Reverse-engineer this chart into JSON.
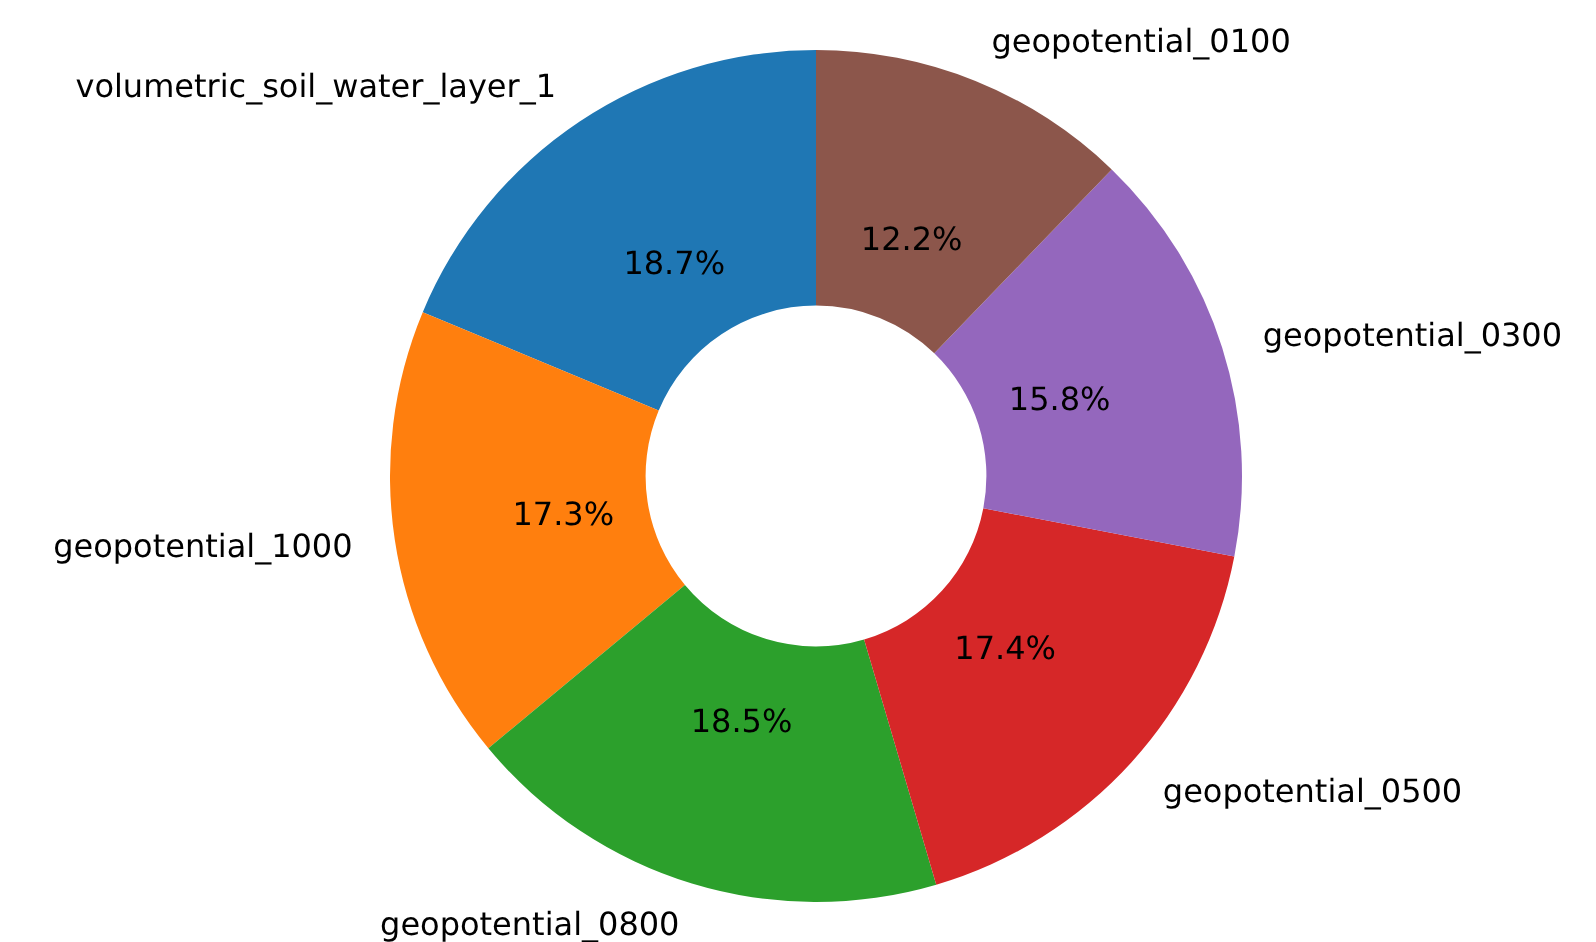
{
  "chart_data": {
    "type": "donut",
    "categories": [
      "volumetric_soil_water_layer_1",
      "geopotential_1000",
      "geopotential_0800",
      "geopotential_0500",
      "geopotential_0300",
      "geopotential_0100"
    ],
    "values": [
      18.7,
      17.3,
      18.5,
      17.4,
      15.8,
      12.2
    ],
    "colors": [
      "#1f77b4",
      "#ff7f0e",
      "#2ca02c",
      "#d62728",
      "#9467bd",
      "#8c564b"
    ],
    "value_labels": [
      "18.7%",
      "17.3%",
      "18.5%",
      "17.4%",
      "15.8%",
      "12.2%"
    ]
  }
}
